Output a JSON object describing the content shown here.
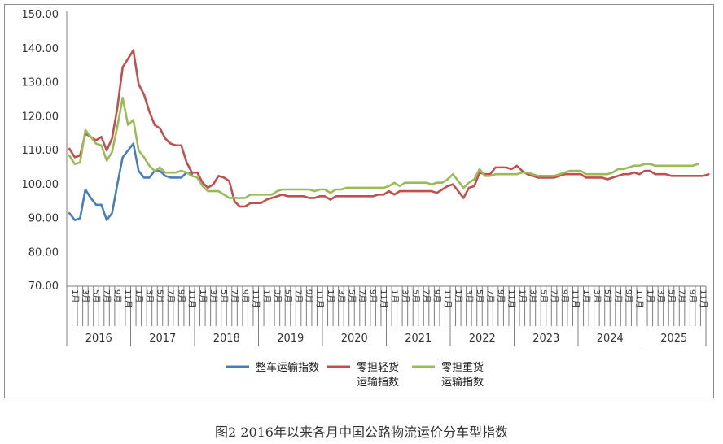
{
  "caption": "图2 2016年以来各月中国公路物流运价分车型指数",
  "colors": {
    "series1": "#4a7ebb",
    "series2": "#c0504d",
    "series3": "#9bbb59",
    "axis": "#7f7f7f"
  },
  "chart_data": {
    "type": "line",
    "y_ticks": [
      "150.00",
      "140.00",
      "130.00",
      "120.00",
      "110.00",
      "100.00",
      "90.00",
      "80.00",
      "70.00"
    ],
    "ylim": [
      70,
      150
    ],
    "x_month_labels": [
      "1月",
      "3月",
      "5月",
      "7月",
      "9月",
      "11月"
    ],
    "years": [
      "2016",
      "2017",
      "2018",
      "2019",
      "2020",
      "2021",
      "2022",
      "2023",
      "2024",
      "2025"
    ],
    "legend": [
      {
        "lines": [
          "整车运输指数"
        ]
      },
      {
        "lines": [
          "零担轻货",
          "运输指数"
        ]
      },
      {
        "lines": [
          "零担重货",
          "运输指数"
        ]
      }
    ],
    "series": [
      {
        "name": "整车运输指数",
        "color": "#4a7ebb",
        "values": [
          91.5,
          89.5,
          90,
          98.5,
          96,
          94,
          94,
          89.5,
          91.5,
          100,
          108,
          110,
          112,
          104,
          102,
          102,
          104,
          104,
          102.5,
          102,
          102,
          102,
          103.5,
          103
        ]
      },
      {
        "name": "零担轻货运输指数",
        "color": "#c0504d",
        "values": [
          110.5,
          108,
          108.5,
          115,
          114,
          113,
          114,
          110,
          113.5,
          122.5,
          134.5,
          137,
          139.5,
          129.5,
          126.5,
          121.5,
          117.5,
          116.5,
          113.5,
          112,
          111.5,
          111.5,
          106.5,
          103.5,
          103.5,
          100.5,
          99,
          100,
          102.5,
          102,
          101,
          95,
          93.5,
          93.5,
          94.5,
          94.5,
          94.5,
          95.5,
          96,
          96.5,
          97,
          96.5,
          96.5,
          96.5,
          96.5,
          96,
          96,
          96.5,
          96.5,
          95.5,
          96.5,
          96.5,
          96.5,
          96.5,
          96.5,
          96.5,
          96.5,
          96.5,
          97,
          97,
          98,
          97,
          98,
          98,
          98,
          98,
          98,
          98,
          98,
          97.5,
          98.5,
          99.5,
          100,
          98,
          96,
          99,
          99.5,
          103.5,
          103,
          103,
          105,
          105,
          105,
          104.5,
          105.5,
          104,
          103,
          102.5,
          102,
          102,
          102,
          102,
          102.5,
          103,
          103,
          103,
          103,
          102,
          102,
          102,
          102,
          101.5,
          102,
          102.5,
          103,
          103,
          103.5,
          103,
          104,
          104,
          103,
          103,
          103,
          102.5,
          102.5,
          102.5,
          102.5,
          102.5,
          102.5,
          102.5,
          103
        ]
      },
      {
        "name": "零担重货运输指数",
        "color": "#9bbb59",
        "values": [
          108.5,
          106,
          106.5,
          116,
          114,
          112,
          111.5,
          107,
          109.5,
          117,
          125.5,
          117.5,
          119,
          110,
          108,
          105.5,
          104,
          105,
          103.5,
          103.5,
          103.5,
          104,
          103.5,
          102.5,
          102,
          99.5,
          98,
          98,
          98,
          97,
          96,
          96,
          96,
          96,
          97,
          97,
          97,
          97,
          97,
          98,
          98.5,
          98.5,
          98.5,
          98.5,
          98.5,
          98.5,
          98,
          98.5,
          98.5,
          97.5,
          98.5,
          98.5,
          99,
          99,
          99,
          99,
          99,
          99,
          99,
          99,
          99.5,
          100.5,
          99.5,
          100.5,
          100.5,
          100.5,
          100.5,
          100.5,
          100,
          100.5,
          100.5,
          101.5,
          103,
          101,
          99,
          100.5,
          101.5,
          104.5,
          102.5,
          102.5,
          103,
          103,
          103,
          103,
          103,
          103.5,
          103.5,
          103,
          102.5,
          102.5,
          102.5,
          102.5,
          103,
          103.5,
          104,
          104,
          104,
          103,
          103,
          103,
          103,
          103,
          103.5,
          104.5,
          104.5,
          105,
          105.5,
          105.5,
          106,
          106,
          105.5,
          105.5,
          105.5,
          105.5,
          105.5,
          105.5,
          105.5,
          105.5,
          106
        ]
      }
    ]
  }
}
